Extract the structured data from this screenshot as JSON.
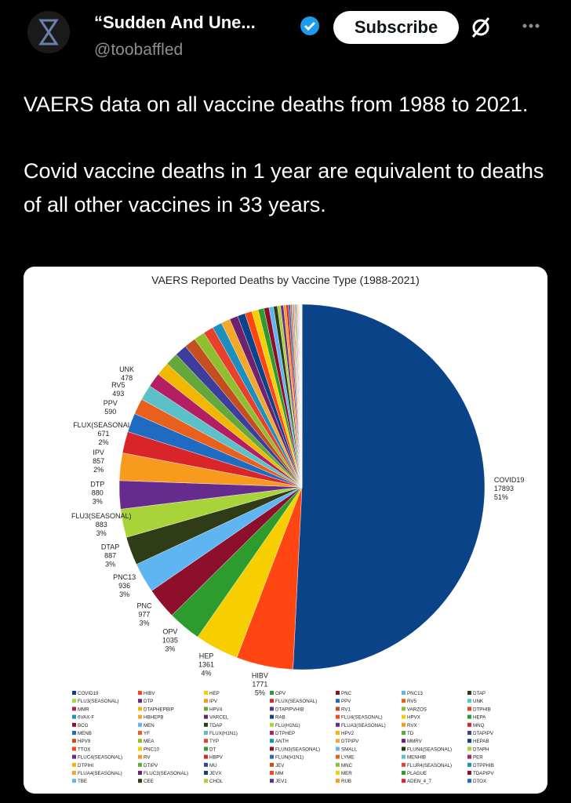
{
  "header": {
    "display_name": "“Sudden And Une...",
    "handle": "@toobaffled",
    "button": "Subscribe"
  },
  "tweet": {
    "paragraphs": [
      "VAERS data on all vaccine deaths from 1988 to 2021.",
      "Covid vaccine deaths in 1 year are equivalent to deaths of all other vaccines in 33 years."
    ]
  },
  "chart_data": {
    "type": "pie",
    "title": "VAERS Reported Deaths by Vaccine Type (1988-2021)",
    "categories": [
      "COVID19",
      "HIBV",
      "HEP",
      "OPV",
      "PNC",
      "PNC13",
      "DTAP",
      "FLU3(SEASONAL)",
      "DTP",
      "IPV",
      "FLUX(SEASONAL)",
      "PPV",
      "RV5",
      "UNK",
      "MMR",
      "DTAPHEPBIP",
      "HPV4",
      "DTAPIPVHIB",
      "RV1",
      "VARZOS",
      "DTPHIB",
      "6VAX-F",
      "HBHEPB",
      "VARCEL",
      "RAB",
      "FLU4(SEASONAL)",
      "HPVX",
      "HEPA",
      "BCG",
      "MEN",
      "TDAP",
      "FLU(H1N1)",
      "FLUA3(SEASONAL)",
      "RVX",
      "MNQ",
      "MENB",
      "YF",
      "FLUX(H1N1)",
      "DTPHEP",
      "HPV2",
      "TD",
      "DTAPIPV",
      "HPV9",
      "MEA",
      "TYP",
      "ANTH",
      "DTPIPV",
      "MMRV",
      "HEPAB",
      "TTOX",
      "PNC10",
      "DT",
      "FLUN3(SEASONAL)",
      "SMALL",
      "FLUN4(SEASONAL)",
      "DTAPH",
      "FLUC4(SEASONAL)",
      "RV",
      "HBPV",
      "FLUN(H1N1)",
      "LYME",
      "MENHIB",
      "PER",
      "DTPIHI",
      "DTIPV",
      "MU",
      "JEV",
      "MNC",
      "FLUR4(SEASONAL)",
      "DTPPHIB",
      "FLUA4(SEASONAL)",
      "FLUC3(SEASONAL)",
      "JEVX",
      "MM",
      "MER",
      "PLAGUE",
      "TDAPIPV",
      "TBE",
      "CEE",
      "CHOL",
      "JEV1",
      "RUB",
      "ADEN_4_7",
      "DTOX"
    ],
    "values": [
      17893,
      1771,
      1361,
      1035,
      977,
      936,
      887,
      883,
      880,
      857,
      671,
      590,
      493,
      478,
      443,
      420,
      400,
      380,
      360,
      340,
      320,
      300,
      280,
      260,
      240,
      220,
      200,
      180,
      160,
      140,
      120,
      100,
      90,
      80,
      70,
      60,
      50,
      30,
      28,
      26,
      24,
      22,
      20,
      18,
      16,
      14,
      12,
      10,
      9,
      8,
      7,
      6,
      5,
      5,
      4,
      4,
      3,
      3,
      3,
      3,
      2,
      2,
      2,
      2,
      2,
      2,
      1,
      1,
      1,
      1,
      1,
      1,
      1,
      1,
      1,
      1,
      1,
      1,
      1,
      1,
      1,
      1,
      1,
      1
    ],
    "percent_labels": [
      "51%",
      "5%",
      "4%",
      "3%",
      "3%",
      "3%",
      "3%",
      "3%",
      "3%",
      "2%",
      "2%",
      null,
      null,
      null,
      null,
      null,
      null,
      null,
      null,
      null,
      null,
      null,
      null,
      null,
      null,
      null,
      null,
      null,
      null,
      null,
      null,
      null,
      null,
      null,
      null,
      null,
      null,
      null,
      null,
      null,
      null,
      null,
      null,
      null,
      null,
      null,
      null,
      null,
      null,
      null,
      null,
      null,
      null,
      null,
      null,
      null,
      null,
      null,
      null,
      null,
      null,
      null,
      null,
      null,
      null,
      null,
      null,
      null,
      null,
      null,
      null,
      null,
      null,
      null,
      null,
      null,
      null,
      null,
      null,
      null,
      null,
      null,
      null,
      null
    ],
    "value_labels_shown": [
      true,
      true,
      true,
      true,
      true,
      true,
      true,
      true,
      true,
      true,
      true,
      true,
      true,
      true,
      false,
      false,
      false,
      false,
      false,
      false,
      false,
      false,
      false,
      false,
      false,
      false,
      false,
      false,
      false,
      false,
      false,
      false,
      false,
      false,
      false,
      false,
      false,
      false,
      false,
      false,
      false,
      false,
      false,
      false,
      false,
      false,
      false,
      false,
      false,
      false,
      false,
      false,
      false,
      false,
      false,
      false,
      false,
      false,
      false,
      false,
      false,
      false,
      false,
      false,
      false,
      false,
      false,
      false,
      false,
      false,
      false,
      false,
      false,
      false,
      false,
      false,
      false,
      false,
      false,
      false,
      false,
      false,
      false,
      false
    ],
    "palette": [
      "#0b4388",
      "#ff4612",
      "#f7ce00",
      "#2e9b2f",
      "#8e0f2c",
      "#5fb4f2",
      "#2f3c17",
      "#a8d43a",
      "#652b8d",
      "#f89a1e",
      "#d9242a",
      "#1f6bc2",
      "#e8601c",
      "#5bc0c8",
      "#b31f62",
      "#f2b700",
      "#64a83c",
      "#3d3d9e",
      "#c44e1e",
      "#8fbf2f",
      "#e7402b",
      "#1d8fbf",
      "#f4a82a",
      "#70216e"
    ],
    "legend_columns": 7
  }
}
